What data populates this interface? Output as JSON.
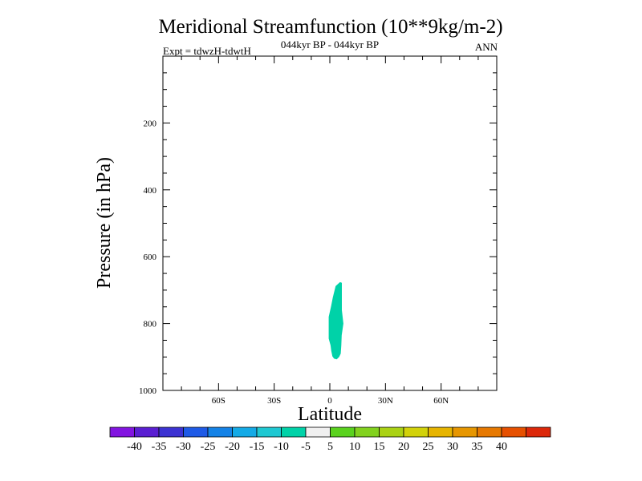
{
  "chart_data": {
    "type": "filled-contour",
    "title": "Meridional Streamfunction (10**9kg/m-2)",
    "subtitle": "044kyr BP - 044kyr BP",
    "left_label": "Expt = tdwzH-tdwtH",
    "right_label": "ANN",
    "xlabel": "Latitude",
    "ylabel": "Pressure (in hPa)",
    "xlim": [
      -90,
      90
    ],
    "ylim": [
      0,
      1000
    ],
    "y_inverted": true,
    "x_ticks": [
      {
        "value": -60,
        "label": "60S"
      },
      {
        "value": -30,
        "label": "30S"
      },
      {
        "value": 0,
        "label": "0"
      },
      {
        "value": 30,
        "label": "30N"
      },
      {
        "value": 60,
        "label": "60N"
      }
    ],
    "x_minor_step": 10,
    "y_ticks": [
      {
        "value": 200,
        "label": "200"
      },
      {
        "value": 400,
        "label": "400"
      },
      {
        "value": 600,
        "label": "600"
      },
      {
        "value": 800,
        "label": "800"
      },
      {
        "value": 1000,
        "label": "1000"
      }
    ],
    "y_minor_step": 50,
    "contour_regions": [
      {
        "interval": "-10 to -5",
        "color": "#00d2a8",
        "polygon_lat_hpa": [
          [
            -0.6,
            845
          ],
          [
            -0.6,
            780
          ],
          [
            0.7,
            748
          ],
          [
            1.6,
            722
          ],
          [
            3.1,
            688
          ],
          [
            5.5,
            676
          ],
          [
            6.5,
            678
          ],
          [
            6.5,
            760
          ],
          [
            7.3,
            800
          ],
          [
            6.4,
            835
          ],
          [
            6.2,
            865
          ],
          [
            5.9,
            890
          ],
          [
            5.0,
            900
          ],
          [
            3.7,
            907
          ],
          [
            2.3,
            905
          ],
          [
            1.4,
            898
          ],
          [
            0.8,
            882
          ],
          [
            0.4,
            865
          ]
        ]
      }
    ],
    "colorbar": {
      "colors": [
        "#8214e0",
        "#5a1ed2",
        "#3c32d2",
        "#1e5ae6",
        "#1482e6",
        "#14aae6",
        "#1ec8d2",
        "#00d2a8",
        "#f0f0f0",
        "#5ad21e",
        "#82d21e",
        "#aad214",
        "#d2d20a",
        "#e6b400",
        "#e69600",
        "#e67800",
        "#e65000",
        "#dc280a"
      ],
      "labels": [
        "-40",
        "-35",
        "-30",
        "-25",
        "-20",
        "-15",
        "-10",
        "-5",
        "5",
        "10",
        "15",
        "20",
        "25",
        "30",
        "35",
        "40"
      ]
    }
  }
}
